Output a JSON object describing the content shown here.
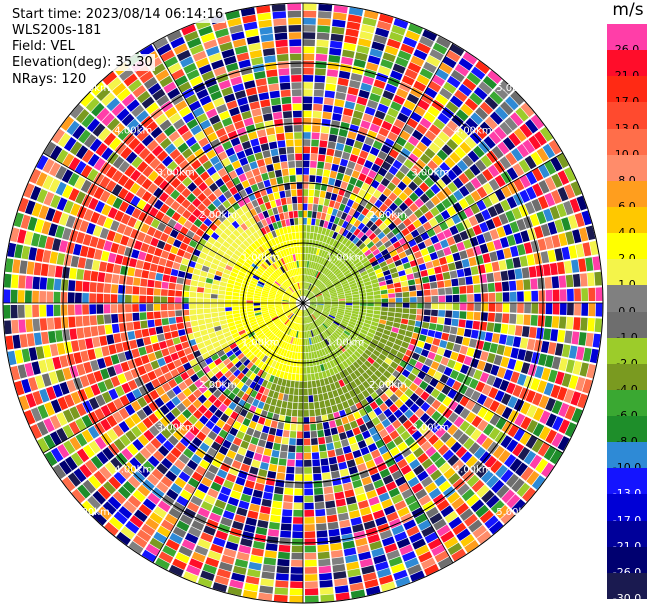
{
  "header": {
    "start_time": "Start time: 2023/08/14 06:14:16",
    "instrument": "WLS200s-181",
    "field": "Field: VEL",
    "elevation": "Elevation(deg): 35.30",
    "nrays": "NRays: 120"
  },
  "colorbar": {
    "unit": "m/s",
    "levels": [
      {
        "label": "26.0",
        "color": "#ff3ea8",
        "text": "#000000"
      },
      {
        "label": "21.0",
        "color": "#ff0d2a",
        "text": "#000000"
      },
      {
        "label": "17.0",
        "color": "#ff2a14",
        "text": "#000000"
      },
      {
        "label": "13.0",
        "color": "#ff4a2e",
        "text": "#000000"
      },
      {
        "label": "10.0",
        "color": "#ff6e4a",
        "text": "#000000"
      },
      {
        "label": "8.0",
        "color": "#ff8c6a",
        "text": "#000000"
      },
      {
        "label": "6.0",
        "color": "#ff9e1e",
        "text": "#000000"
      },
      {
        "label": "4.0",
        "color": "#ffc800",
        "text": "#000000"
      },
      {
        "label": "2.0",
        "color": "#ffff00",
        "text": "#000000"
      },
      {
        "label": "1.0",
        "color": "#f4f44a",
        "text": "#000000"
      },
      {
        "label": "0.0",
        "color": "#808080",
        "text": "#000000"
      },
      {
        "label": "-1.0",
        "color": "#6e6e6e",
        "text": "#000000"
      },
      {
        "label": "-2.0",
        "color": "#9ccc2a",
        "text": "#000000"
      },
      {
        "label": "-4.0",
        "color": "#7a9a20",
        "text": "#000000"
      },
      {
        "label": "-6.0",
        "color": "#3aa832",
        "text": "#000000"
      },
      {
        "label": "-8.0",
        "color": "#1e8e2a",
        "text": "#000000"
      },
      {
        "label": "-10.0",
        "color": "#2e8ad6",
        "text": "#000000"
      },
      {
        "label": "-13.0",
        "color": "#1414ff",
        "text": "#ffffff"
      },
      {
        "label": "-17.0",
        "color": "#0000d6",
        "text": "#ffffff"
      },
      {
        "label": "-21.0",
        "color": "#00009a",
        "text": "#ffffff"
      },
      {
        "label": "-26.0",
        "color": "#000070",
        "text": "#ffffff"
      },
      {
        "label": "-30.0",
        "color": "#1a1a50",
        "text": "#ffffff"
      }
    ]
  },
  "chart_data": {
    "type": "heatmap",
    "projection": "polar-ppi",
    "field": "VEL",
    "nrays": 120,
    "range_rings_km": [
      1.0,
      2.0,
      3.0,
      4.0,
      5.0
    ],
    "ring_label": "km",
    "spokes_deg": [
      0,
      30,
      60,
      90,
      120,
      150,
      180,
      210,
      240,
      270,
      300,
      330
    ],
    "regions": [
      {
        "rmin_km": 0.0,
        "rmax_km": 1.2,
        "az_from": 180,
        "az_to": 360,
        "value": 2.5
      },
      {
        "rmin_km": 0.0,
        "rmax_km": 1.3,
        "az_from": 0,
        "az_to": 180,
        "value": -1.5
      },
      {
        "rmin_km": 1.2,
        "rmax_km": 1.9,
        "az_from": 240,
        "az_to": 330,
        "value": 1.5
      },
      {
        "rmin_km": 1.2,
        "rmax_km": 1.9,
        "az_from": 90,
        "az_to": 200,
        "value": -3.0
      }
    ],
    "noise_beyond_km": 1.9
  }
}
